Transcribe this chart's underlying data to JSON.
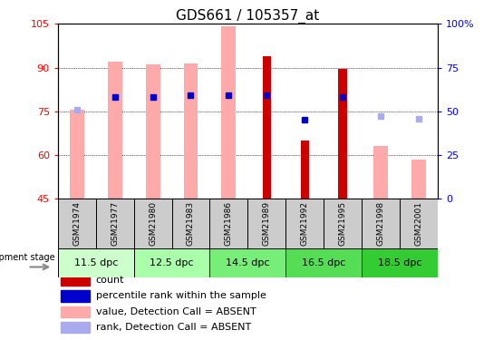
{
  "title": "GDS661 / 105357_at",
  "samples": [
    "GSM21974",
    "GSM21977",
    "GSM21980",
    "GSM21983",
    "GSM21986",
    "GSM21989",
    "GSM21992",
    "GSM21995",
    "GSM21998",
    "GSM22001"
  ],
  "ylim_left": [
    45,
    105
  ],
  "ylim_right": [
    0,
    100
  ],
  "yticks_left": [
    45,
    60,
    75,
    90,
    105
  ],
  "yticks_right": [
    0,
    25,
    50,
    75,
    100
  ],
  "pink_bars": {
    "GSM21974": 75.5,
    "GSM21977": 92.0,
    "GSM21980": 91.0,
    "GSM21983": 91.5,
    "GSM21986": 104.0,
    "GSM21989": null,
    "GSM21992": null,
    "GSM21995": null,
    "GSM21998": 63.0,
    "GSM22001": 58.5
  },
  "red_bars": {
    "GSM21974": null,
    "GSM21977": null,
    "GSM21980": null,
    "GSM21983": null,
    "GSM21986": null,
    "GSM21989": 94.0,
    "GSM21992": 65.0,
    "GSM21995": 89.5,
    "GSM21998": null,
    "GSM22001": null
  },
  "blue_squares": {
    "GSM21974": null,
    "GSM21977": 80.0,
    "GSM21980": 80.0,
    "GSM21983": 80.5,
    "GSM21986": 80.5,
    "GSM21989": 80.5,
    "GSM21992": 72.0,
    "GSM21995": 80.0,
    "GSM21998": null,
    "GSM22001": null
  },
  "light_blue_squares": {
    "GSM21974": 75.5,
    "GSM21977": null,
    "GSM21980": null,
    "GSM21983": null,
    "GSM21986": null,
    "GSM21989": null,
    "GSM21992": null,
    "GSM21995": null,
    "GSM21998": 73.5,
    "GSM22001": 72.5
  },
  "stage_info": [
    {
      "label": "11.5 dpc",
      "start": 0,
      "end": 1,
      "color": "#ccffcc"
    },
    {
      "label": "12.5 dpc",
      "start": 2,
      "end": 3,
      "color": "#aaffaa"
    },
    {
      "label": "14.5 dpc",
      "start": 4,
      "end": 5,
      "color": "#77ee77"
    },
    {
      "label": "16.5 dpc",
      "start": 6,
      "end": 7,
      "color": "#55dd55"
    },
    {
      "label": "18.5 dpc",
      "start": 8,
      "end": 9,
      "color": "#33cc33"
    }
  ],
  "legend_items": [
    {
      "color": "#cc0000",
      "label": "count"
    },
    {
      "color": "#0000cc",
      "label": "percentile rank within the sample"
    },
    {
      "color": "#ffaaaa",
      "label": "value, Detection Call = ABSENT"
    },
    {
      "color": "#aaaaee",
      "label": "rank, Detection Call = ABSENT"
    }
  ],
  "pink_bar_color": "#ffaaaa",
  "red_bar_color": "#cc0000",
  "blue_sq_color": "#0000cc",
  "light_blue_sq_color": "#aaaaee",
  "sample_cell_color": "#cccccc",
  "title_fontsize": 11,
  "tick_fontsize": 8,
  "label_fontsize": 7.5,
  "legend_fontsize": 8
}
